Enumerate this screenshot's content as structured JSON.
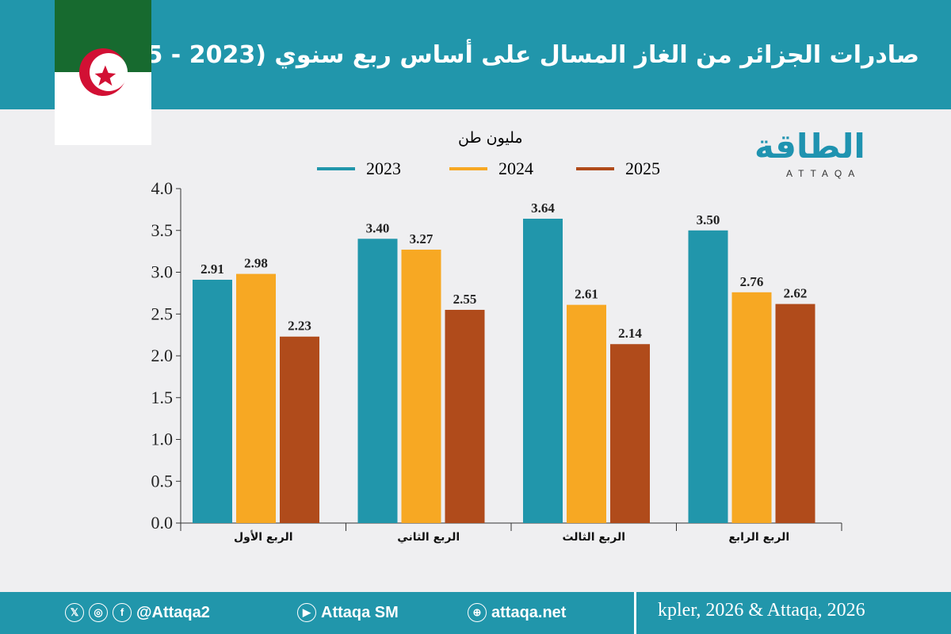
{
  "header": {
    "title": "صادرات الجزائر من الغاز المسال على أساس ربع سنوي (2023 - 2025)"
  },
  "logo": {
    "arabic": "الطاقة",
    "latin": "ATTAQA"
  },
  "footer": {
    "twitter_handle": "@Attaqa2",
    "youtube": "Attaqa SM",
    "website": "attaqa.net",
    "source": "kpler, 2026 & Attaqa, 2026"
  },
  "colors": {
    "header": "#2196ab",
    "2023": "#2196ab",
    "2024": "#f7a823",
    "2025": "#b04b1b"
  },
  "chart_data": {
    "type": "bar",
    "unit_label": "مليون طن",
    "categories": [
      "الربع الأول",
      "الربع الثاني",
      "الربع الثالث",
      "الربع الرابع"
    ],
    "series": [
      {
        "name": "2023",
        "values": [
          2.91,
          3.4,
          3.64,
          3.5
        ]
      },
      {
        "name": "2024",
        "values": [
          2.98,
          3.27,
          2.61,
          2.76
        ]
      },
      {
        "name": "2025",
        "values": [
          2.23,
          2.55,
          2.14,
          2.62
        ]
      }
    ],
    "ylim": [
      0,
      4
    ],
    "yticks": [
      "0.0",
      "0.5",
      "1.0",
      "1.5",
      "2.0",
      "2.5",
      "3.0",
      "3.5",
      "4.0"
    ],
    "legend_position": "top",
    "grid": false
  }
}
